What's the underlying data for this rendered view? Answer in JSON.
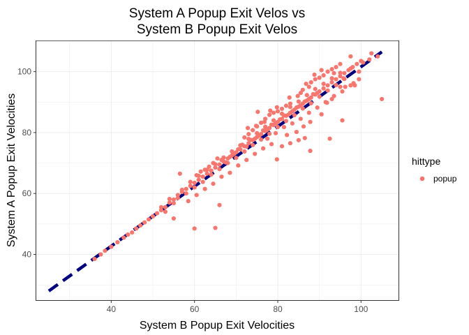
{
  "chart_data": {
    "type": "scatter",
    "title_lines": [
      "System A Popup Exit Velos vs",
      "System B Popup Exit Velos"
    ],
    "xlabel": "System B Popup Exit Velocities",
    "ylabel": "System A Popup Exit Velocities",
    "xlim": [
      22,
      109
    ],
    "ylim": [
      25,
      110
    ],
    "x_ticks": [
      40,
      60,
      80,
      100
    ],
    "y_ticks": [
      40,
      60,
      80,
      100
    ],
    "grid": true,
    "legend": {
      "title": "hittype",
      "position": "right",
      "entries": [
        "popup"
      ]
    },
    "series": [
      {
        "name": "popup",
        "color": "#F8766D",
        "points": [
          [
            36,
            38.5
          ],
          [
            37.5,
            40
          ],
          [
            38.5,
            41.2
          ],
          [
            40,
            42.5
          ],
          [
            41.5,
            44
          ],
          [
            43,
            45.5
          ],
          [
            44,
            46.5
          ],
          [
            45,
            47.2
          ],
          [
            46,
            48.5
          ],
          [
            47,
            49.5
          ],
          [
            48,
            50.5
          ],
          [
            49,
            51.5
          ],
          [
            50,
            52.5
          ],
          [
            51,
            53.5
          ],
          [
            52,
            54.5
          ],
          [
            53,
            55.5
          ],
          [
            54,
            57
          ],
          [
            55,
            58
          ],
          [
            56,
            59.5
          ],
          [
            57,
            60.5
          ],
          [
            58,
            61.5
          ],
          [
            59,
            62.5
          ],
          [
            60,
            63.5
          ],
          [
            61,
            64.5
          ],
          [
            62,
            65.5
          ],
          [
            63,
            66.5
          ],
          [
            64,
            67.5
          ],
          [
            65,
            68.5
          ],
          [
            66,
            69.5
          ],
          [
            67,
            70.5
          ],
          [
            68,
            71.5
          ],
          [
            69,
            72.5
          ],
          [
            70,
            73.5
          ],
          [
            71,
            74.5
          ],
          [
            72,
            75.5
          ],
          [
            73,
            76.5
          ],
          [
            74,
            77.5
          ],
          [
            75,
            78.5
          ],
          [
            76,
            79.5
          ],
          [
            77,
            80.5
          ],
          [
            78,
            81.5
          ],
          [
            79,
            82.5
          ],
          [
            80,
            83.5
          ],
          [
            81,
            84.5
          ],
          [
            82,
            85.5
          ],
          [
            83,
            86.5
          ],
          [
            84,
            87.5
          ],
          [
            85,
            88.5
          ],
          [
            86,
            89.5
          ],
          [
            87,
            90.5
          ],
          [
            88,
            91.5
          ],
          [
            89,
            92.5
          ],
          [
            90,
            93.5
          ],
          [
            91,
            94.5
          ],
          [
            92,
            95.5
          ],
          [
            93,
            96.5
          ],
          [
            94,
            97.5
          ],
          [
            95,
            98.5
          ],
          [
            96,
            99.5
          ],
          [
            97,
            100.5
          ],
          [
            98,
            101.5
          ],
          [
            99,
            102.5
          ],
          [
            100,
            103.5
          ],
          [
            52,
            55.5
          ],
          [
            53,
            54
          ],
          [
            54,
            58.2
          ],
          [
            55,
            56.8
          ],
          [
            56,
            58.5
          ],
          [
            57,
            61.2
          ],
          [
            58,
            60
          ],
          [
            59,
            63.8
          ],
          [
            60,
            62
          ],
          [
            61,
            65.8
          ],
          [
            62,
            63.8
          ],
          [
            63,
            67.8
          ],
          [
            64,
            66.2
          ],
          [
            65,
            69.6
          ],
          [
            66,
            68
          ],
          [
            67,
            71.8
          ],
          [
            68,
            70
          ],
          [
            69,
            73.8
          ],
          [
            70,
            71.7
          ],
          [
            71,
            75.8
          ],
          [
            72,
            73.8
          ],
          [
            73,
            77.9
          ],
          [
            74,
            75.9
          ],
          [
            75,
            79.8
          ],
          [
            76,
            77.7
          ],
          [
            77,
            81.9
          ],
          [
            78,
            79.6
          ],
          [
            79,
            84
          ],
          [
            80,
            81.8
          ],
          [
            81,
            86.2
          ],
          [
            82,
            83.8
          ],
          [
            83,
            88.4
          ],
          [
            84,
            85.7
          ],
          [
            85,
            90.2
          ],
          [
            86,
            87.9
          ],
          [
            87,
            92.3
          ],
          [
            88,
            89.6
          ],
          [
            89,
            94.3
          ],
          [
            90,
            91.8
          ],
          [
            91,
            96
          ],
          [
            92,
            93.8
          ],
          [
            93,
            97.8
          ],
          [
            94,
            95.6
          ],
          [
            95,
            99.6
          ],
          [
            96,
            97.6
          ],
          [
            66.5,
            71
          ],
          [
            67.5,
            70.2
          ],
          [
            68.5,
            72
          ],
          [
            69.5,
            73
          ],
          [
            70.5,
            74.5
          ],
          [
            71.5,
            76
          ],
          [
            72.5,
            75.4
          ],
          [
            73.5,
            77.6
          ],
          [
            74.5,
            78
          ],
          [
            75.5,
            79
          ],
          [
            76.5,
            80.7
          ],
          [
            77.5,
            81
          ],
          [
            78.5,
            82.6
          ],
          [
            79.5,
            83
          ],
          [
            80.5,
            84.3
          ],
          [
            81.5,
            85.6
          ],
          [
            82.5,
            85.8
          ],
          [
            83.5,
            87
          ],
          [
            84.5,
            88.2
          ],
          [
            85.5,
            89
          ],
          [
            86.5,
            90.2
          ],
          [
            87.5,
            91
          ],
          [
            88.5,
            92.6
          ],
          [
            89.5,
            93
          ],
          [
            79,
            86.5
          ],
          [
            80,
            87
          ],
          [
            81,
            87.8
          ],
          [
            82,
            88.8
          ],
          [
            83,
            89.5
          ],
          [
            78,
            85.8
          ],
          [
            77,
            84.5
          ],
          [
            76,
            83.2
          ],
          [
            75,
            82
          ],
          [
            74,
            80.8
          ],
          [
            73,
            79.5
          ],
          [
            72,
            78.4
          ],
          [
            85.5,
            93
          ],
          [
            86,
            94
          ],
          [
            87.5,
            95
          ],
          [
            88,
            96.5
          ],
          [
            89,
            97.5
          ],
          [
            90,
            98
          ],
          [
            91,
            98.8
          ],
          [
            92,
            100
          ],
          [
            93,
            100.8
          ],
          [
            94,
            101.5
          ],
          [
            95,
            102.5
          ],
          [
            77.5,
            78
          ],
          [
            79.5,
            79.8
          ],
          [
            81.5,
            81.8
          ],
          [
            83.5,
            83
          ],
          [
            85.5,
            84.5
          ],
          [
            87.5,
            86.5
          ],
          [
            89.5,
            88.2
          ],
          [
            91.5,
            90
          ],
          [
            93.5,
            92
          ],
          [
            95.5,
            93.5
          ],
          [
            97.5,
            95.5
          ],
          [
            99.5,
            97.5
          ],
          [
            60.5,
            66
          ],
          [
            61.5,
            67.2
          ],
          [
            62.5,
            67.8
          ],
          [
            63.5,
            68.8
          ],
          [
            64.5,
            70
          ],
          [
            65.5,
            71.5
          ],
          [
            58.5,
            57.5
          ],
          [
            60.5,
            59.5
          ],
          [
            62.5,
            61.5
          ],
          [
            64.5,
            63.2
          ],
          [
            66.5,
            65.5
          ],
          [
            68.5,
            66.8
          ],
          [
            70.5,
            69.2
          ],
          [
            72.5,
            71
          ],
          [
            74.5,
            73
          ],
          [
            76.5,
            74.8
          ],
          [
            72.8,
            81.5
          ],
          [
            74.8,
            82.2
          ],
          [
            76.8,
            83.5
          ],
          [
            78.2,
            87.2
          ],
          [
            79.8,
            88.3
          ],
          [
            82.8,
            91.5
          ],
          [
            84.8,
            92
          ],
          [
            86.8,
            96
          ],
          [
            88.8,
            99
          ],
          [
            90.5,
            100.5
          ],
          [
            75.2,
            86.8
          ],
          [
            82.2,
            79.2
          ],
          [
            84.5,
            80.2
          ],
          [
            86.2,
            82
          ],
          [
            87.8,
            83.5
          ],
          [
            91.8,
            89.8
          ],
          [
            93,
            91
          ],
          [
            96.2,
            95
          ],
          [
            98.2,
            96.2
          ],
          [
            95.8,
            97.8
          ],
          [
            56.5,
            66.5
          ],
          [
            60,
            48.5
          ],
          [
            65,
            48.7
          ],
          [
            66,
            56.2
          ],
          [
            55,
            51.8
          ],
          [
            85,
            77.5
          ],
          [
            87.8,
            74
          ],
          [
            92.5,
            78
          ],
          [
            95,
            95
          ],
          [
            97.5,
            101
          ],
          [
            99.5,
            100
          ],
          [
            100.5,
            103
          ],
          [
            102,
            104
          ],
          [
            102.5,
            106
          ],
          [
            104,
            105
          ],
          [
            105,
            91
          ],
          [
            95.5,
            84
          ],
          [
            98.5,
            95.5
          ],
          [
            93.5,
            99.5
          ],
          [
            78.5,
            76.2
          ],
          [
            90.5,
            86
          ],
          [
            81,
            75.5
          ],
          [
            83,
            76.5
          ],
          [
            86.5,
            78.2
          ],
          [
            79.8,
            71.2
          ],
          [
            97.5,
            105
          ]
        ]
      }
    ],
    "reference_line": {
      "style": "dashed",
      "color": "#000080",
      "from": [
        25,
        28
      ],
      "to": [
        105,
        106.5
      ]
    }
  }
}
